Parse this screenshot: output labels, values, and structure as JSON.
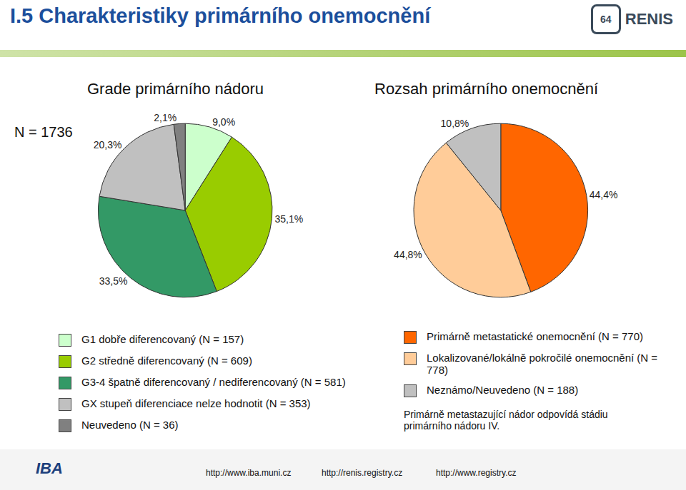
{
  "header": {
    "title": "I.5 Charakteristiky primárního onemocnění",
    "logo_number": "64",
    "logo_text": "RENIS"
  },
  "n_label": "N = 1736",
  "chart_data": [
    {
      "type": "pie",
      "title": "Grade primárního nádoru",
      "categories": [
        "G1 dobře diferencovaný (N = 157)",
        "G2 středně diferencovaný (N = 609)",
        "G3-4 špatně diferencovaný / nediferencovaný (N = 581)",
        "GX stupeň diferenciace nelze hodnotit (N = 353)",
        "Neuvedeno (N = 36)"
      ],
      "values": [
        9.0,
        35.1,
        33.5,
        20.3,
        2.1
      ],
      "value_labels": [
        "9,0%",
        "35,1%",
        "33,5%",
        "20,3%",
        "2,1%"
      ],
      "colors": [
        "#ccffcc",
        "#99cc00",
        "#339966",
        "#c0c0c0",
        "#808080"
      ],
      "data_labels": true
    },
    {
      "type": "pie",
      "title": "Rozsah primárního onemocnění",
      "categories": [
        "Primárně metastatické onemocnění (N = 770)",
        "Lokalizované/lokálně pokročilé onemocnění (N = 778)",
        "Neznámo/Neuvedeno (N = 188)"
      ],
      "values": [
        44.4,
        44.8,
        10.8
      ],
      "value_labels": [
        "44,4%",
        "44,8%",
        "10,8%"
      ],
      "colors": [
        "#ff6600",
        "#ffcc99",
        "#c0c0c0"
      ],
      "data_labels": true
    }
  ],
  "note": "Primárně metastazující nádor odpovídá stádiu primárního nádoru IV.",
  "footer": {
    "logo": "IBA",
    "links": [
      "http://www.iba.muni.cz",
      "http://renis.registry.cz",
      "http://www.registry.cz"
    ]
  }
}
